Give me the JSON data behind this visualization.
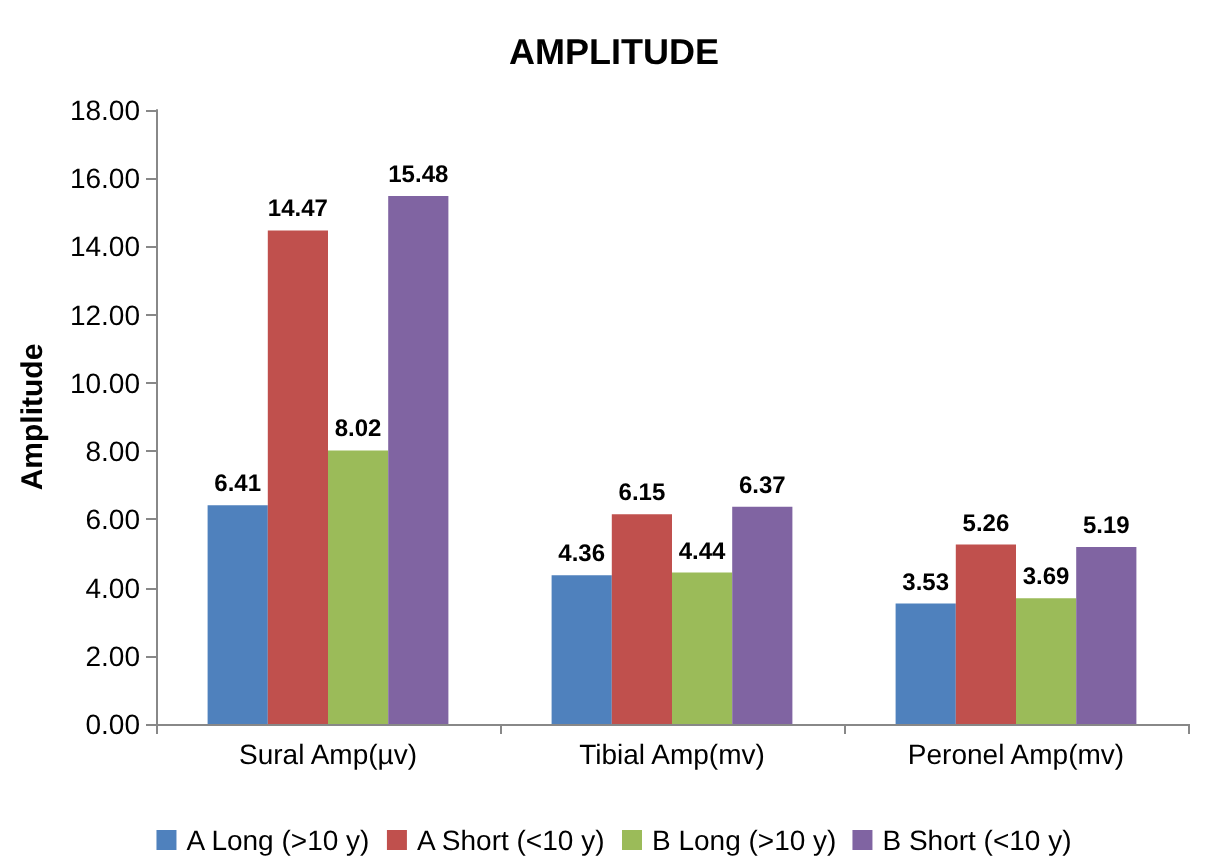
{
  "chart_data": {
    "type": "bar",
    "title": "AMPLITUDE",
    "ylabel": "Amplitude",
    "categories": [
      "Sural Amp(µv)",
      "Tibial Amp(mv)",
      "Peronel Amp(mv)"
    ],
    "series": [
      {
        "name": "A Long (>10 y)",
        "color": "#4f81bd",
        "values": [
          6.41,
          4.36,
          3.53
        ]
      },
      {
        "name": "A Short (<10 y)",
        "color": "#c0504d",
        "values": [
          14.47,
          6.15,
          5.26
        ]
      },
      {
        "name": "B Long (>10 y)",
        "color": "#9bbb59",
        "values": [
          8.02,
          4.44,
          3.69
        ]
      },
      {
        "name": "B Short (<10 y)",
        "color": "#8064a2",
        "values": [
          15.48,
          6.37,
          5.19
        ]
      }
    ],
    "ylim": [
      0,
      18
    ],
    "yticks": [
      {
        "value": 0,
        "label": "0.00"
      },
      {
        "value": 2,
        "label": "2.00"
      },
      {
        "value": 4,
        "label": "4.00"
      },
      {
        "value": 6,
        "label": "6.00"
      },
      {
        "value": 8,
        "label": "8.00"
      },
      {
        "value": 10,
        "label": "10.00"
      },
      {
        "value": 12,
        "label": "12.00"
      },
      {
        "value": 14,
        "label": "14.00"
      },
      {
        "value": 16,
        "label": "16.00"
      },
      {
        "value": 18,
        "label": "18.00"
      }
    ],
    "data_labels": true,
    "grid": false,
    "legend": "bottom"
  }
}
